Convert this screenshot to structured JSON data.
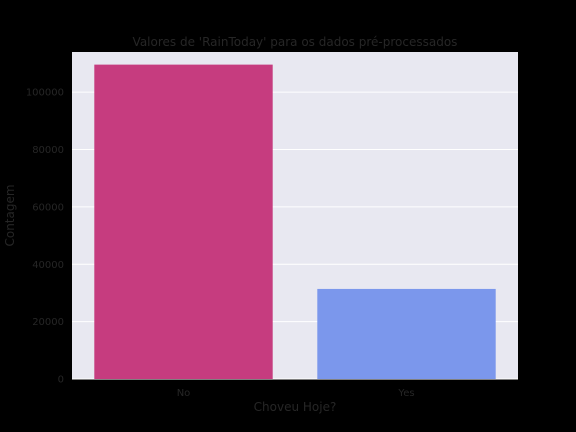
{
  "chart_data": {
    "type": "bar",
    "title": "Valores de 'RainToday' para os dados pré-processados",
    "xlabel": "Choveu Hoje?",
    "ylabel": "Contagem",
    "categories": [
      "No",
      "Yes"
    ],
    "values": [
      109600,
      31400
    ],
    "bar_colors": [
      "#c63c7f",
      "#7b97ec"
    ],
    "ylim": [
      0,
      114000
    ],
    "yticks": [
      0,
      20000,
      40000,
      60000,
      80000,
      100000
    ],
    "ytick_labels": [
      "0",
      "20000",
      "40000",
      "60000",
      "80000",
      "100000"
    ],
    "grid": true,
    "plot_background": "#e8e8f1",
    "figure_background": "#000000",
    "grid_color": "#ffffff"
  }
}
